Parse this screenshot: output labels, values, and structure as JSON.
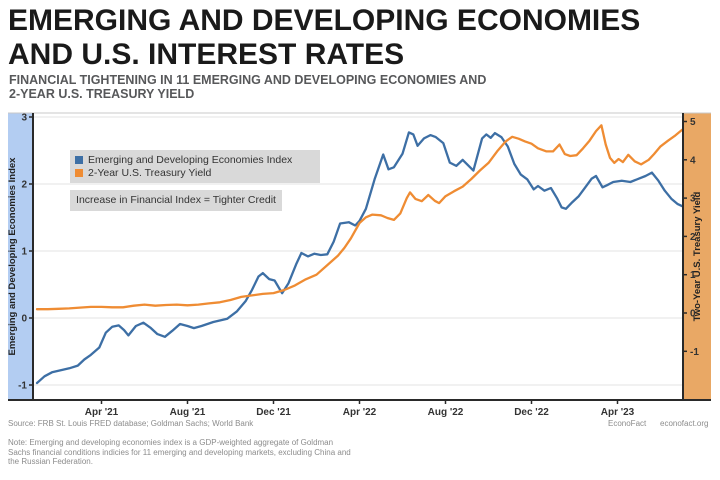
{
  "header": {
    "title_line1": "EMERGING AND DEVELOPING ECONOMIES",
    "title_line2": "AND U.S. INTEREST RATES",
    "subtitle_line1": "FINANCIAL TIGHTENING IN 11 EMERGING AND DEVELOPING ECONOMIES AND",
    "subtitle_line2": "2-YEAR U.S. TREASURY YIELD"
  },
  "legend": {
    "items": [
      {
        "label": "Emerging and Developing Economies Index",
        "color": "#3d6fa5"
      },
      {
        "label": "2-Year U.S. Treasury Yield",
        "color": "#ef8c33"
      }
    ],
    "note": "Increase in Financial Index = Tighter Credit"
  },
  "footer": {
    "source": "Source: FRB St. Louis FRED database; Goldman Sachs; World Bank",
    "brand": "EconoFact",
    "website": "econofact.org",
    "note": "Note: Emerging and developing economies index is a GDP-weighted aggregate of Goldman Sachs financial conditions indicies for 11 emerging and developing markets, excluding China and the Russian Federation."
  },
  "colors": {
    "title": "#1a1a1a",
    "subtitle": "#57585a",
    "tick_label": "#333333",
    "grid": "#e3e3e3",
    "spine": "#2a2a2a",
    "plot_top_border": "#c8c8c8",
    "legend_bg": "#d9d9d9",
    "left_band": "#b3cdf2",
    "right_band": "#e9a865",
    "blue_line": "#3d6fa5",
    "orange_line": "#ef8c33",
    "footer_text": "#8c8c8c"
  },
  "chart_data": {
    "type": "line",
    "title": "Emerging and Developing Economies and U.S. Interest Rates",
    "x_unit": "months since Jan 2021",
    "x_range": [
      0,
      30
    ],
    "grid": "horizontal gridlines at left-axis integers, legend top-left inside plot",
    "x_ticks": [
      {
        "label": "Apr '21",
        "i": 3
      },
      {
        "label": "Aug '21",
        "i": 7
      },
      {
        "label": "Dec '21",
        "i": 11
      },
      {
        "label": "Apr '22",
        "i": 15
      },
      {
        "label": "Aug '22",
        "i": 19
      },
      {
        "label": "Dec '22",
        "i": 23
      },
      {
        "label": "Apr '23",
        "i": 27
      }
    ],
    "left_axis": {
      "label": "Emerging and Developing Economies Index",
      "ticks": [
        3,
        2,
        1,
        0,
        -1
      ],
      "range": [
        -1.2,
        3.1
      ]
    },
    "right_axis": {
      "label": "Two-Year U.S. Treasury Yield",
      "ticks": [
        5,
        4,
        3,
        2,
        1,
        0,
        -1
      ],
      "range": [
        -2.3,
        5.2
      ]
    },
    "series": [
      {
        "name": "Emerging and Developing Economies Index",
        "axis": "left",
        "color": "#3d6fa5",
        "points": [
          [
            0,
            -0.97
          ],
          [
            0.35,
            -0.87
          ],
          [
            0.7,
            -0.81
          ],
          [
            1.1,
            -0.78
          ],
          [
            1.5,
            -0.75
          ],
          [
            1.9,
            -0.71
          ],
          [
            2.2,
            -0.62
          ],
          [
            2.5,
            -0.55
          ],
          [
            2.9,
            -0.44
          ],
          [
            3.2,
            -0.22
          ],
          [
            3.5,
            -0.13
          ],
          [
            3.8,
            -0.11
          ],
          [
            4.05,
            -0.18
          ],
          [
            4.25,
            -0.26
          ],
          [
            4.6,
            -0.12
          ],
          [
            4.95,
            -0.07
          ],
          [
            5.3,
            -0.15
          ],
          [
            5.6,
            -0.24
          ],
          [
            5.95,
            -0.28
          ],
          [
            6.3,
            -0.19
          ],
          [
            6.65,
            -0.09
          ],
          [
            7.0,
            -0.12
          ],
          [
            7.3,
            -0.15
          ],
          [
            7.65,
            -0.12
          ],
          [
            8.2,
            -0.06
          ],
          [
            8.85,
            -0.01
          ],
          [
            9.3,
            0.1
          ],
          [
            9.7,
            0.25
          ],
          [
            10.0,
            0.42
          ],
          [
            10.3,
            0.62
          ],
          [
            10.5,
            0.67
          ],
          [
            10.8,
            0.58
          ],
          [
            11.05,
            0.56
          ],
          [
            11.4,
            0.37
          ],
          [
            11.7,
            0.52
          ],
          [
            12.05,
            0.8
          ],
          [
            12.3,
            0.97
          ],
          [
            12.6,
            0.92
          ],
          [
            12.9,
            0.96
          ],
          [
            13.2,
            0.94
          ],
          [
            13.5,
            0.95
          ],
          [
            13.8,
            1.14
          ],
          [
            14.1,
            1.41
          ],
          [
            14.5,
            1.43
          ],
          [
            14.8,
            1.38
          ],
          [
            15.0,
            1.45
          ],
          [
            15.3,
            1.63
          ],
          [
            15.7,
            2.07
          ],
          [
            16.1,
            2.44
          ],
          [
            16.35,
            2.22
          ],
          [
            16.6,
            2.25
          ],
          [
            17.0,
            2.45
          ],
          [
            17.3,
            2.77
          ],
          [
            17.5,
            2.74
          ],
          [
            17.7,
            2.57
          ],
          [
            18.0,
            2.68
          ],
          [
            18.3,
            2.73
          ],
          [
            18.55,
            2.7
          ],
          [
            18.9,
            2.61
          ],
          [
            19.2,
            2.32
          ],
          [
            19.5,
            2.27
          ],
          [
            19.8,
            2.36
          ],
          [
            20.3,
            2.2
          ],
          [
            20.7,
            2.68
          ],
          [
            20.9,
            2.74
          ],
          [
            21.1,
            2.69
          ],
          [
            21.3,
            2.76
          ],
          [
            21.6,
            2.7
          ],
          [
            21.9,
            2.56
          ],
          [
            22.2,
            2.3
          ],
          [
            22.5,
            2.14
          ],
          [
            22.8,
            2.07
          ],
          [
            23.1,
            1.92
          ],
          [
            23.3,
            1.97
          ],
          [
            23.6,
            1.9
          ],
          [
            23.9,
            1.94
          ],
          [
            24.2,
            1.78
          ],
          [
            24.4,
            1.65
          ],
          [
            24.6,
            1.63
          ],
          [
            24.9,
            1.73
          ],
          [
            25.2,
            1.82
          ],
          [
            25.5,
            1.95
          ],
          [
            25.8,
            2.08
          ],
          [
            26.0,
            2.12
          ],
          [
            26.3,
            1.95
          ],
          [
            26.5,
            1.98
          ],
          [
            26.8,
            2.03
          ],
          [
            27.2,
            2.05
          ],
          [
            27.6,
            2.03
          ],
          [
            28.0,
            2.08
          ],
          [
            28.3,
            2.12
          ],
          [
            28.6,
            2.17
          ],
          [
            28.9,
            2.05
          ],
          [
            29.2,
            1.9
          ],
          [
            29.5,
            1.78
          ],
          [
            29.8,
            1.7
          ],
          [
            30.0,
            1.67
          ]
        ]
      },
      {
        "name": "2-Year U.S. Treasury Yield",
        "axis": "right",
        "color": "#ef8c33",
        "points": [
          [
            0,
            0.1
          ],
          [
            0.5,
            0.1
          ],
          [
            1,
            0.11
          ],
          [
            1.5,
            0.12
          ],
          [
            2,
            0.14
          ],
          [
            2.5,
            0.16
          ],
          [
            3,
            0.16
          ],
          [
            3.5,
            0.15
          ],
          [
            4,
            0.15
          ],
          [
            4.5,
            0.19
          ],
          [
            5,
            0.22
          ],
          [
            5.5,
            0.19
          ],
          [
            6,
            0.21
          ],
          [
            6.5,
            0.22
          ],
          [
            7,
            0.2
          ],
          [
            7.5,
            0.22
          ],
          [
            8,
            0.25
          ],
          [
            8.5,
            0.28
          ],
          [
            9,
            0.34
          ],
          [
            9.5,
            0.42
          ],
          [
            10,
            0.46
          ],
          [
            10.5,
            0.5
          ],
          [
            11,
            0.52
          ],
          [
            11.5,
            0.6
          ],
          [
            12,
            0.72
          ],
          [
            12.5,
            0.88
          ],
          [
            13,
            1.0
          ],
          [
            13.5,
            1.25
          ],
          [
            14,
            1.5
          ],
          [
            14.3,
            1.7
          ],
          [
            14.6,
            1.95
          ],
          [
            15,
            2.35
          ],
          [
            15.3,
            2.5
          ],
          [
            15.6,
            2.57
          ],
          [
            16,
            2.55
          ],
          [
            16.3,
            2.48
          ],
          [
            16.6,
            2.43
          ],
          [
            16.9,
            2.6
          ],
          [
            17.2,
            3.0
          ],
          [
            17.35,
            3.15
          ],
          [
            17.6,
            2.98
          ],
          [
            17.9,
            2.92
          ],
          [
            18.2,
            3.08
          ],
          [
            18.5,
            2.93
          ],
          [
            18.7,
            2.87
          ],
          [
            19,
            3.05
          ],
          [
            19.4,
            3.18
          ],
          [
            19.8,
            3.3
          ],
          [
            20.2,
            3.5
          ],
          [
            20.6,
            3.72
          ],
          [
            21,
            3.92
          ],
          [
            21.4,
            4.22
          ],
          [
            21.8,
            4.48
          ],
          [
            22.1,
            4.6
          ],
          [
            22.4,
            4.55
          ],
          [
            22.7,
            4.48
          ],
          [
            23,
            4.42
          ],
          [
            23.3,
            4.3
          ],
          [
            23.7,
            4.22
          ],
          [
            24,
            4.22
          ],
          [
            24.3,
            4.4
          ],
          [
            24.55,
            4.15
          ],
          [
            24.8,
            4.1
          ],
          [
            25.1,
            4.12
          ],
          [
            25.4,
            4.3
          ],
          [
            25.7,
            4.5
          ],
          [
            26,
            4.75
          ],
          [
            26.25,
            4.9
          ],
          [
            26.45,
            4.4
          ],
          [
            26.65,
            4.05
          ],
          [
            26.85,
            3.92
          ],
          [
            27.05,
            4.02
          ],
          [
            27.25,
            3.94
          ],
          [
            27.5,
            4.13
          ],
          [
            27.8,
            3.96
          ],
          [
            28.1,
            3.88
          ],
          [
            28.45,
            4.0
          ],
          [
            28.7,
            4.15
          ],
          [
            29,
            4.35
          ],
          [
            29.35,
            4.5
          ],
          [
            29.65,
            4.62
          ],
          [
            30,
            4.78
          ]
        ]
      }
    ]
  }
}
